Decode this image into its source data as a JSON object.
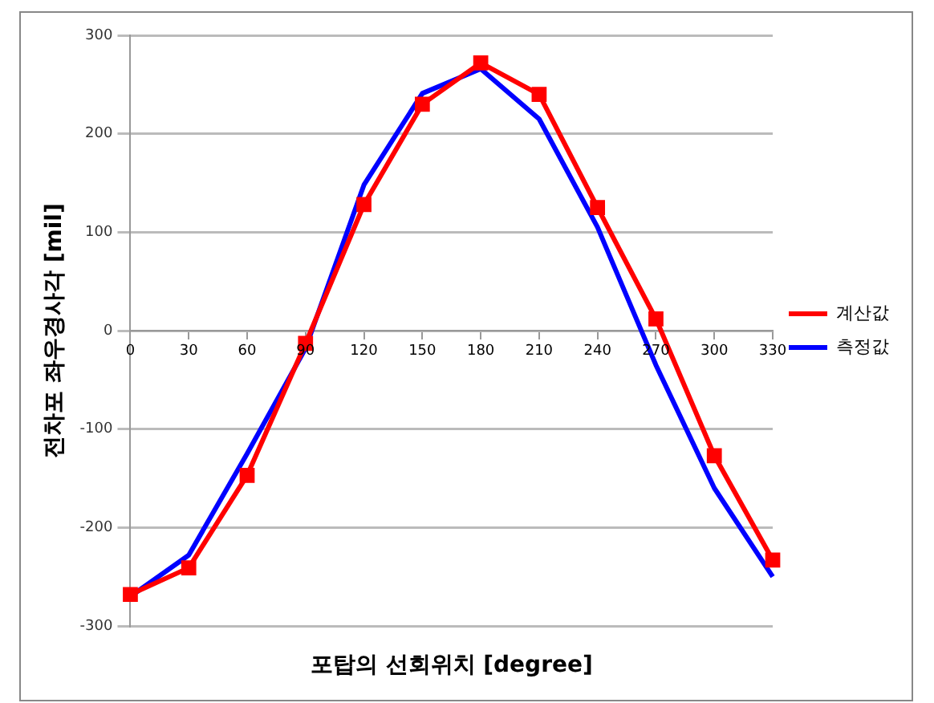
{
  "chart_data": {
    "type": "line",
    "xlabel": "포탑의 선회위치 [degree]",
    "ylabel": "전차포 좌우경사각 [mil]",
    "categories": [
      "0",
      "30",
      "60",
      "90",
      "120",
      "150",
      "180",
      "210",
      "240",
      "270",
      "300",
      "330"
    ],
    "series": [
      {
        "name": "계산값",
        "color": "#ff0000",
        "marker": "square",
        "values": [
          -268,
          -241,
          -147,
          -13,
          128,
          230,
          272,
          240,
          125,
          12,
          -127,
          -233
        ]
      },
      {
        "name": "측정값",
        "color": "#0000ff",
        "marker": "none",
        "values": [
          -270,
          -228,
          -125,
          -18,
          148,
          241,
          266,
          215,
          105,
          -35,
          -160,
          -250
        ]
      }
    ],
    "ylim": [
      -300,
      300
    ],
    "yticks": [
      -300,
      -200,
      -100,
      0,
      100,
      200,
      300
    ],
    "grid": "y",
    "legend": "right",
    "line_style": "solid"
  }
}
